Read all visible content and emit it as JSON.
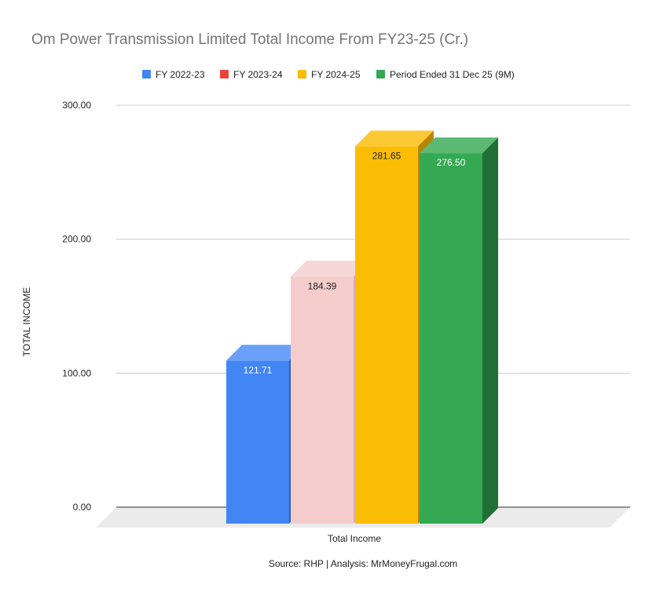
{
  "chart_data": {
    "type": "bar",
    "title": "Om Power Transmission Limited Total Income From FY23-25 (Cr.)",
    "xlabel": "Total Income",
    "ylabel": "TOTAL INCOME",
    "categories": [
      "Total Income"
    ],
    "series": [
      {
        "name": "FY 2022-23",
        "values": [
          121.71
        ],
        "label": "121.71",
        "color": "#4285F4",
        "top_color": "#6AA0F7",
        "side_color": "#2F62B8"
      },
      {
        "name": "FY 2023-24",
        "values": [
          184.39
        ],
        "label": "184.39",
        "color": "#F4CCCC",
        "top_color": "#F6D6D6",
        "side_color": "#D9AFAF",
        "legend_color": "#EA4335"
      },
      {
        "name": "FY 2024-25",
        "values": [
          281.65
        ],
        "label": "281.65",
        "color": "#FBBC04",
        "top_color": "#FCC934",
        "side_color": "#B98600"
      },
      {
        "name": "Period Ended 31 Dec 25 (9M)",
        "values": [
          276.5
        ],
        "label": "276.50",
        "color": "#34A853",
        "top_color": "#5BB974",
        "side_color": "#206F36"
      }
    ],
    "ylim": [
      0,
      300
    ],
    "yticks": [
      "0.00",
      "100.00",
      "200.00",
      "300.00"
    ],
    "grid": true,
    "legend_position": "top",
    "style": "3d"
  },
  "footer": {
    "source": "Source: RHP | Analysis: MrMoneyFrugal.com"
  }
}
